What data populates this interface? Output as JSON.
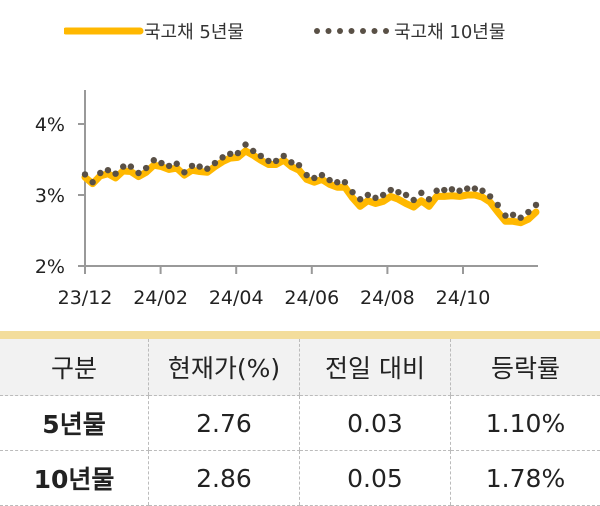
{
  "legend": {
    "s5": "국고채 5년물",
    "s10": "국고채 10년물"
  },
  "colors": {
    "s5": "#ffb800",
    "s10": "#595046",
    "axis": "#999999"
  },
  "chart_data": {
    "type": "line",
    "title": "",
    "x_ticks": [
      "23/12",
      "24/02",
      "24/04",
      "24/06",
      "24/08",
      "24/10"
    ],
    "y_ticks": [
      "2%",
      "3%",
      "4%"
    ],
    "ylim": [
      2,
      4
    ],
    "xlim_months": [
      0,
      12
    ],
    "series": [
      {
        "name": "국고채 5년물",
        "style": "line",
        "values": [
          3.25,
          3.16,
          3.27,
          3.3,
          3.24,
          3.34,
          3.33,
          3.26,
          3.32,
          3.42,
          3.4,
          3.36,
          3.38,
          3.28,
          3.35,
          3.33,
          3.32,
          3.4,
          3.47,
          3.52,
          3.53,
          3.62,
          3.56,
          3.49,
          3.43,
          3.43,
          3.49,
          3.4,
          3.35,
          3.22,
          3.18,
          3.22,
          3.15,
          3.11,
          3.11,
          2.96,
          2.84,
          2.92,
          2.88,
          2.91,
          2.98,
          2.94,
          2.88,
          2.83,
          2.92,
          2.84,
          2.98,
          2.98,
          2.99,
          2.98,
          3.0,
          3.0,
          2.97,
          2.9,
          2.76,
          2.63,
          2.63,
          2.61,
          2.66,
          2.76
        ]
      },
      {
        "name": "국고채 10년물",
        "style": "dots",
        "values": [
          3.29,
          3.18,
          3.31,
          3.35,
          3.3,
          3.4,
          3.4,
          3.31,
          3.38,
          3.49,
          3.45,
          3.41,
          3.44,
          3.32,
          3.41,
          3.4,
          3.37,
          3.45,
          3.53,
          3.58,
          3.59,
          3.71,
          3.62,
          3.55,
          3.48,
          3.48,
          3.55,
          3.46,
          3.42,
          3.28,
          3.24,
          3.28,
          3.21,
          3.18,
          3.18,
          3.04,
          2.94,
          3.0,
          2.96,
          3.0,
          3.07,
          3.04,
          3.0,
          2.93,
          3.03,
          2.94,
          3.06,
          3.07,
          3.08,
          3.06,
          3.09,
          3.09,
          3.06,
          2.98,
          2.86,
          2.71,
          2.72,
          2.68,
          2.76,
          2.86
        ]
      }
    ]
  },
  "table": {
    "headers": [
      "구분",
      "현재가(%)",
      "전일 대비",
      "등락률"
    ],
    "rows": [
      [
        "5년물",
        "2.76",
        "0.03",
        "1.10%"
      ],
      [
        "10년물",
        "2.86",
        "0.05",
        "1.78%"
      ]
    ]
  }
}
